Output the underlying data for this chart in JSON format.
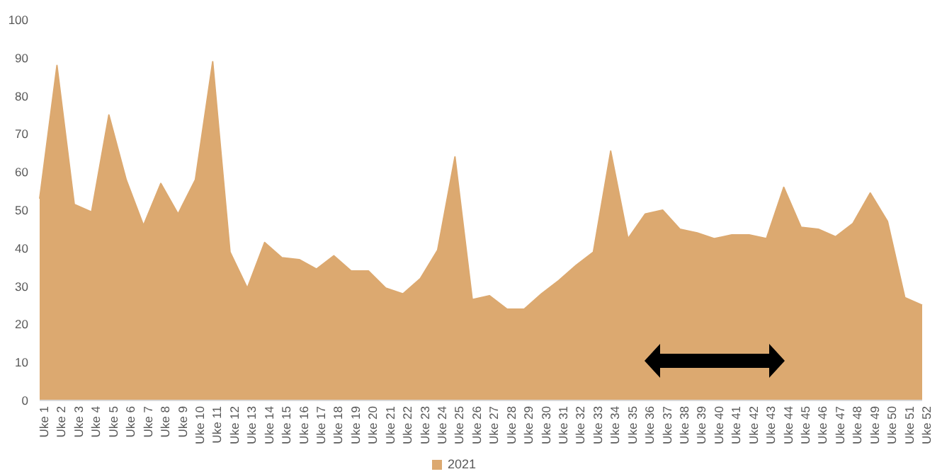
{
  "chart_data": {
    "type": "area",
    "categories": [
      "Uke 1",
      "Uke 2",
      "Uke 3",
      "Uke 4",
      "Uke 5",
      "Uke 6",
      "Uke 7",
      "Uke 8",
      "Uke 9",
      "Uke 10",
      "Uke 11",
      "Uke 12",
      "Uke 13",
      "Uke 14",
      "Uke 15",
      "Uke 16",
      "Uke 17",
      "Uke 18",
      "Uke 19",
      "Uke 20",
      "Uke 21",
      "Uke 22",
      "Uke 23",
      "Uke 24",
      "Uke 25",
      "Uke 26",
      "Uke 27",
      "Uke 28",
      "Uke 29",
      "Uke 30",
      "Uke 31",
      "Uke 32",
      "Uke 33",
      "Uke 34",
      "Uke 35",
      "Uke 36",
      "Uke 37",
      "Uke 38",
      "Uke 39",
      "Uke 40",
      "Uke 41",
      "Uke 42",
      "Uke 43",
      "Uke 44",
      "Uke 45",
      "Uke 46",
      "Uke 47",
      "Uke 48",
      "Uke 49",
      "Uke 50",
      "Uke 51",
      "Uke 52"
    ],
    "series": [
      {
        "name": "2021",
        "color": "#dca970",
        "values": [
          53,
          88,
          51.5,
          49.5,
          75,
          58,
          46,
          57,
          49,
          58,
          89,
          39,
          29.5,
          41.5,
          37.5,
          37,
          34.5,
          38,
          34,
          34,
          29.5,
          28,
          32,
          39.5,
          64,
          26.5,
          27.5,
          24,
          24,
          28,
          31.5,
          35.5,
          39,
          65.5,
          42.5,
          49,
          50,
          45,
          44,
          42.5,
          43.5,
          43.5,
          42.5,
          56,
          45.5,
          45,
          43,
          46.5,
          54.5,
          47,
          27,
          25
        ]
      }
    ],
    "ylim": [
      0,
      100
    ],
    "yticks": [
      0,
      10,
      20,
      30,
      40,
      50,
      60,
      70,
      80,
      90,
      100
    ],
    "grid": false,
    "legend": "bottom"
  }
}
